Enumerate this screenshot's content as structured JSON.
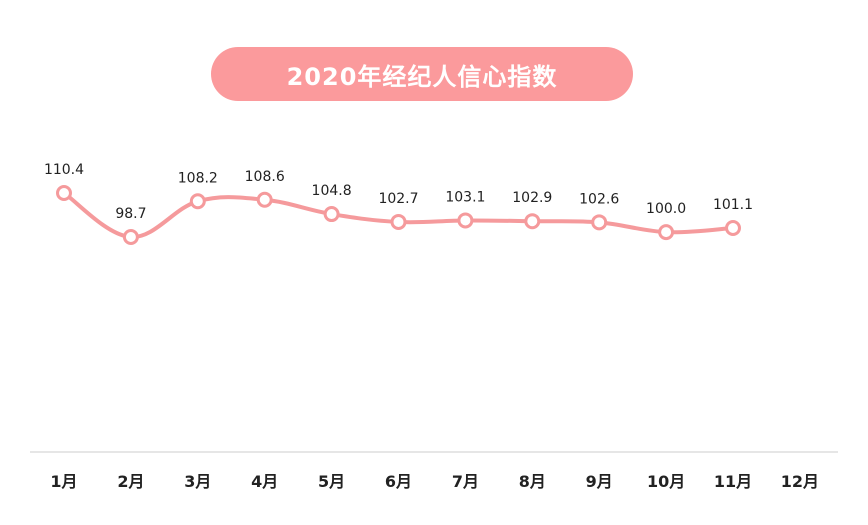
{
  "title": "2020年经纪人信心指数",
  "chart_data": {
    "type": "line",
    "title": "2020年经纪人信心指数",
    "categories": [
      "1月",
      "2月",
      "3月",
      "4月",
      "5月",
      "6月",
      "7月",
      "8月",
      "9月",
      "10月",
      "11月",
      "12月"
    ],
    "values": [
      110.4,
      98.7,
      108.2,
      108.6,
      104.8,
      102.7,
      103.1,
      102.9,
      102.6,
      100.0,
      101.1,
      null
    ],
    "value_labels": [
      "110.4",
      "98.7",
      "108.2",
      "108.6",
      "104.8",
      "102.7",
      "103.1",
      "102.9",
      "102.6",
      "100.0",
      "101.1",
      ""
    ],
    "xlabel": "",
    "ylabel": "",
    "grid": false,
    "colors": {
      "line": "#f59a9c",
      "marker_fill": "#ffffff",
      "title_bg": "#fb9a9c",
      "axis": "#dddddd"
    }
  }
}
